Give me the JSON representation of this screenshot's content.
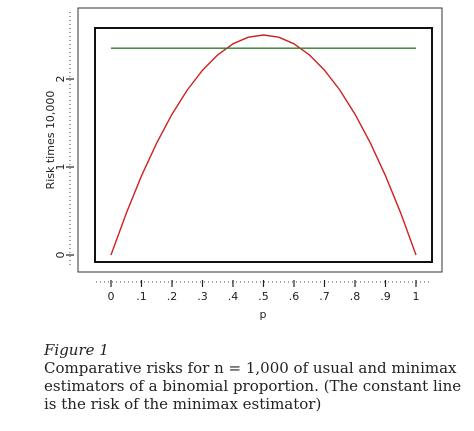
{
  "figure": {
    "heading": "Figure 1",
    "caption": "Comparative risks for n = 1,000 of usual and minimax estimators of a binomial proportion. (The constant line is the risk of the minimax estimator)"
  },
  "chart_data": {
    "type": "line",
    "xlabel": "p",
    "ylabel": "Risk times 10,000",
    "xlim": [
      0,
      1
    ],
    "ylim": [
      0,
      2.5
    ],
    "x_ticks": [
      0,
      0.1,
      0.2,
      0.3,
      0.4,
      0.5,
      0.6,
      0.7,
      0.8,
      0.9,
      1
    ],
    "x_tick_labels": [
      "0",
      ".1",
      ".2",
      ".3",
      ".4",
      ".5",
      ".6",
      ".7",
      ".8",
      ".9",
      "1"
    ],
    "y_ticks": [
      0,
      1,
      2
    ],
    "y_tick_labels": [
      "0",
      "1",
      "2"
    ],
    "grid": false,
    "series": [
      {
        "color": "#cc2222",
        "x": [
          0,
          0.05,
          0.1,
          0.15,
          0.2,
          0.25,
          0.3,
          0.35,
          0.4,
          0.45,
          0.5,
          0.55,
          0.6,
          0.65,
          0.7,
          0.75,
          0.8,
          0.85,
          0.9,
          0.95,
          1
        ],
        "y": [
          0,
          0.475,
          0.9,
          1.275,
          1.6,
          1.875,
          2.1,
          2.275,
          2.4,
          2.475,
          2.5,
          2.475,
          2.4,
          2.275,
          2.1,
          1.875,
          1.6,
          1.275,
          0.9,
          0.475,
          0
        ]
      },
      {
        "color": "#2e7d2e",
        "x": [
          0,
          1
        ],
        "y": [
          2.35,
          2.35
        ]
      }
    ]
  }
}
